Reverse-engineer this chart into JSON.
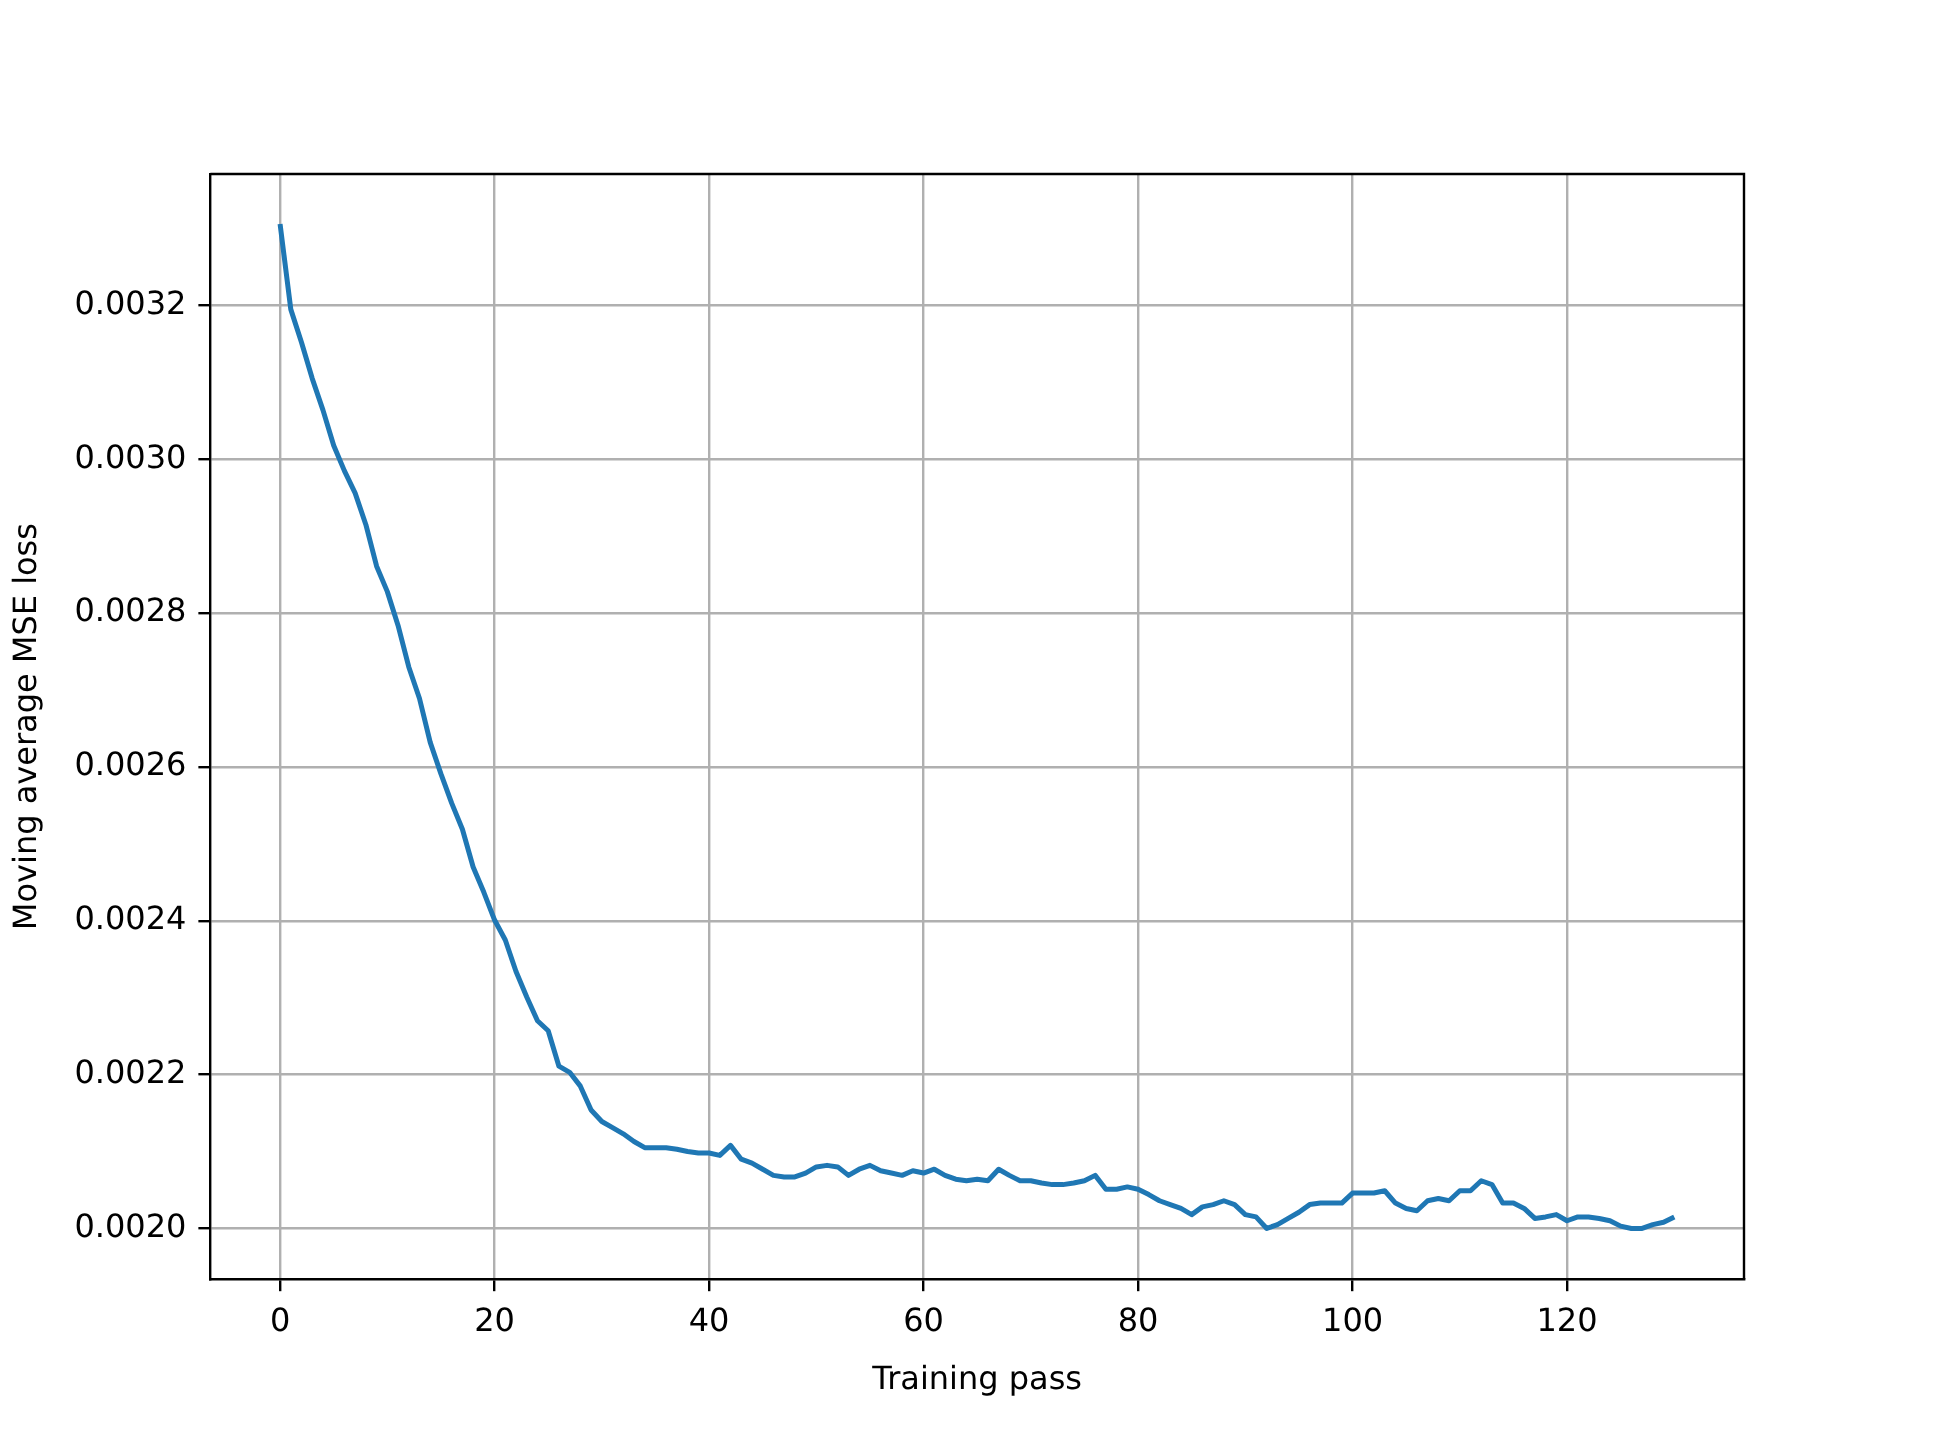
{
  "chart_data": {
    "type": "line",
    "xlabel": "Training pass",
    "ylabel": "Moving average MSE loss",
    "x": [
      0,
      1,
      2,
      3,
      4,
      5,
      6,
      7,
      8,
      9,
      10,
      11,
      12,
      13,
      14,
      15,
      16,
      17,
      18,
      19,
      20,
      21,
      22,
      23,
      24,
      25,
      26,
      27,
      28,
      29,
      30,
      31,
      32,
      33,
      34,
      35,
      36,
      37,
      38,
      39,
      40,
      41,
      42,
      43,
      44,
      45,
      46,
      47,
      48,
      49,
      50,
      51,
      52,
      53,
      54,
      55,
      56,
      57,
      58,
      59,
      60,
      61,
      62,
      63,
      64,
      65,
      66,
      67,
      68,
      69,
      70,
      71,
      72,
      73,
      74,
      75,
      76,
      77,
      78,
      79,
      80,
      81,
      82,
      83,
      84,
      85,
      86,
      87,
      88,
      89,
      90,
      91,
      92,
      93,
      94,
      95,
      96,
      97,
      98,
      99,
      100,
      101,
      102,
      103,
      104,
      105,
      106,
      107,
      108,
      109,
      110,
      111,
      112,
      113,
      114,
      115,
      116,
      117,
      118,
      119,
      120,
      121,
      122,
      123,
      124,
      125,
      126,
      127,
      128,
      129,
      130
    ],
    "series": [
      {
        "color": "#1f77b4",
        "values": [
          0.003306,
          0.003195,
          0.003152,
          0.003105,
          0.003064,
          0.003018,
          0.002985,
          0.002956,
          0.002915,
          0.002861,
          0.002828,
          0.002784,
          0.00273,
          0.002689,
          0.002632,
          0.002591,
          0.002553,
          0.002519,
          0.00247,
          0.002437,
          0.002401,
          0.002375,
          0.002334,
          0.002301,
          0.00227,
          0.002257,
          0.002211,
          0.002203,
          0.002185,
          0.002154,
          0.002139,
          0.002131,
          0.002123,
          0.002113,
          0.002105,
          0.002105,
          0.002105,
          0.002103,
          0.0021,
          0.002098,
          0.002098,
          0.002095,
          0.002108,
          0.00209,
          0.002085,
          0.002077,
          0.002069,
          0.002067,
          0.002067,
          0.002072,
          0.00208,
          0.002082,
          0.00208,
          0.002069,
          0.002077,
          0.002082,
          0.002075,
          0.002072,
          0.002069,
          0.002075,
          0.002072,
          0.002077,
          0.002069,
          0.002064,
          0.002062,
          0.002064,
          0.002062,
          0.002077,
          0.002069,
          0.002062,
          0.002062,
          0.002059,
          0.002057,
          0.002057,
          0.002059,
          0.002062,
          0.002069,
          0.002051,
          0.002051,
          0.002054,
          0.002051,
          0.002044,
          0.002036,
          0.002031,
          0.002026,
          0.002018,
          0.002028,
          0.002031,
          0.002036,
          0.002031,
          0.002018,
          0.002015,
          0.002,
          0.002005,
          0.002013,
          0.002021,
          0.002031,
          0.002033,
          0.002033,
          0.002033,
          0.002046,
          0.002046,
          0.002046,
          0.002049,
          0.002033,
          0.002026,
          0.002023,
          0.002036,
          0.002039,
          0.002036,
          0.002049,
          0.002049,
          0.002062,
          0.002057,
          0.002033,
          0.002033,
          0.002026,
          0.002013,
          0.002015,
          0.002018,
          0.00201,
          0.002015,
          0.002015,
          0.002013,
          0.00201,
          0.002003,
          0.002,
          0.002,
          0.002005,
          0.002008,
          0.002015
        ]
      }
    ],
    "xlim": [
      -6.5,
      136.5
    ],
    "xticks": [
      0,
      20,
      40,
      60,
      80,
      100,
      120
    ],
    "ylim": [
      0.001934,
      0.003371
    ],
    "yticks": [
      {
        "value": 0.002,
        "label": "0.0020"
      },
      {
        "value": 0.0022,
        "label": "0.0022"
      },
      {
        "value": 0.0024,
        "label": "0.0024"
      },
      {
        "value": 0.0026,
        "label": "0.0026"
      },
      {
        "value": 0.0028,
        "label": "0.0028"
      },
      {
        "value": 0.003,
        "label": "0.0030"
      },
      {
        "value": 0.0032,
        "label": "0.0032"
      }
    ],
    "grid": true,
    "marker": "none",
    "line_style": "solid"
  }
}
